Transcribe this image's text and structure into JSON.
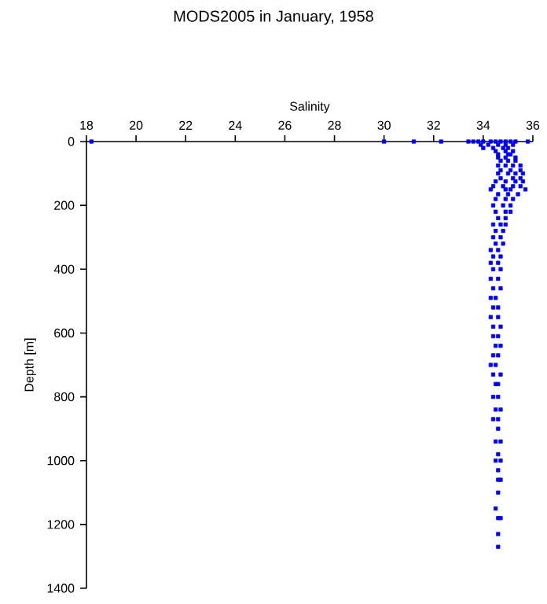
{
  "chart_data": {
    "type": "scatter",
    "title": "MODS2005 in January, 1958",
    "xlabel": "Salinity",
    "ylabel": "Depth [m]",
    "xlim": [
      18,
      36
    ],
    "xticks": [
      18,
      20,
      22,
      24,
      26,
      28,
      30,
      32,
      34,
      36
    ],
    "ylim": [
      1400,
      0
    ],
    "yticks": [
      0,
      200,
      400,
      600,
      800,
      1000,
      1200,
      1400
    ],
    "marker": "square",
    "series": [
      {
        "color": "#0000ff",
        "x": [
          18.2,
          30.0,
          31.2,
          32.3,
          33.4,
          33.6,
          33.8,
          34.0,
          34.3,
          34.5,
          34.7,
          34.9,
          35.1,
          35.3,
          35.8,
          33.9,
          34.2,
          34.6,
          34.9,
          35.2,
          34.0,
          34.4,
          34.8,
          35.0,
          34.5,
          34.9,
          35.2,
          34.6,
          35.0,
          35.1,
          34.6,
          34.9,
          35.3,
          34.7,
          35.0,
          35.3,
          34.6,
          34.9,
          35.2,
          35.5,
          34.7,
          35.1,
          35.5,
          34.6,
          35.0,
          35.3,
          35.6,
          34.7,
          35.2,
          35.5,
          34.5,
          34.9,
          35.3,
          35.6,
          34.4,
          34.8,
          35.2,
          35.5,
          34.3,
          34.9,
          35.1,
          35.7,
          34.6,
          35.0,
          35.4,
          34.5,
          34.9,
          35.2,
          34.4,
          34.8,
          35.1,
          34.5,
          34.9,
          35.1,
          34.6,
          34.9,
          34.4,
          34.7,
          34.9,
          34.5,
          34.8,
          34.4,
          34.7,
          34.5,
          34.8,
          34.3,
          34.6,
          34.4,
          34.7,
          34.3,
          34.6,
          34.4,
          34.7,
          34.3,
          34.6,
          34.4,
          34.7,
          34.3,
          34.5,
          34.4,
          34.6,
          34.3,
          34.6,
          34.4,
          34.7,
          34.4,
          34.6,
          34.5,
          34.7,
          34.4,
          34.6,
          34.3,
          34.5,
          34.4,
          34.7,
          34.5,
          34.6,
          34.4,
          34.6,
          34.5,
          34.7,
          34.4,
          34.6,
          34.6,
          34.5,
          34.7,
          34.6,
          34.5,
          34.7,
          34.6,
          34.6,
          34.7,
          34.6,
          34.5,
          34.6,
          34.7,
          34.6,
          34.6
        ],
        "values": [
          0,
          0,
          0,
          0,
          0,
          0,
          0,
          0,
          0,
          0,
          0,
          0,
          0,
          0,
          0,
          10,
          10,
          10,
          10,
          10,
          20,
          20,
          20,
          20,
          30,
          30,
          30,
          40,
          40,
          40,
          50,
          50,
          50,
          60,
          60,
          60,
          75,
          75,
          75,
          75,
          90,
          90,
          90,
          100,
          100,
          100,
          100,
          115,
          115,
          115,
          125,
          125,
          125,
          125,
          140,
          140,
          140,
          140,
          150,
          150,
          150,
          150,
          165,
          165,
          165,
          180,
          180,
          180,
          200,
          200,
          200,
          220,
          220,
          220,
          240,
          240,
          260,
          260,
          260,
          280,
          280,
          300,
          300,
          320,
          320,
          340,
          340,
          360,
          360,
          380,
          380,
          400,
          400,
          430,
          430,
          460,
          460,
          490,
          490,
          520,
          520,
          550,
          550,
          580,
          580,
          610,
          610,
          640,
          640,
          670,
          670,
          700,
          700,
          730,
          730,
          760,
          760,
          800,
          800,
          840,
          840,
          870,
          870,
          900,
          940,
          940,
          980,
          1000,
          1000,
          1030,
          1060,
          1060,
          1100,
          1150,
          1180,
          1180,
          1230,
          1270
        ]
      }
    ]
  }
}
